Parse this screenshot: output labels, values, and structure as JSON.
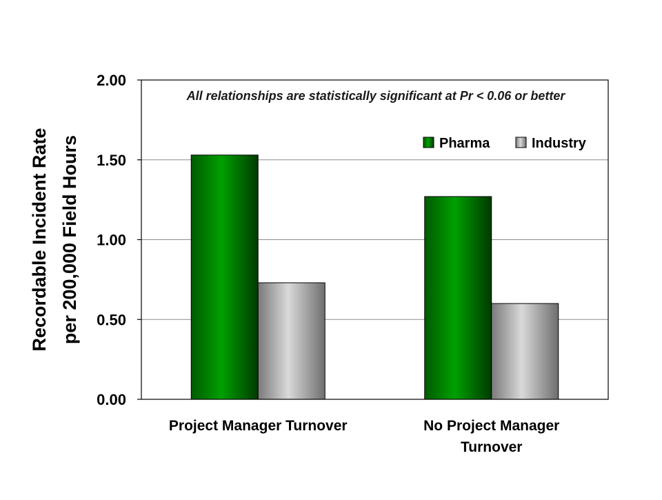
{
  "chart_data": {
    "type": "bar",
    "title": "",
    "xlabel": "",
    "ylabel": [
      "Recordable Incident Rate",
      "per 200,000 Field Hours"
    ],
    "ylim": [
      0,
      2
    ],
    "yticks": [
      "0.00",
      "0.50",
      "1.00",
      "1.50",
      "2.00"
    ],
    "grid": true,
    "legend_position": "top-right",
    "annotation": "All relationships are statistically significant at Pr < 0.06 or better",
    "categories": [
      [
        "Project Manager Turnover"
      ],
      [
        "No Project Manager",
        "Turnover"
      ]
    ],
    "series": [
      {
        "name": "Pharma",
        "color": "#007a00",
        "values": [
          1.53,
          1.27
        ]
      },
      {
        "name": "Industry",
        "color": "#a6a6a6",
        "values": [
          0.73,
          0.6
        ]
      }
    ]
  }
}
